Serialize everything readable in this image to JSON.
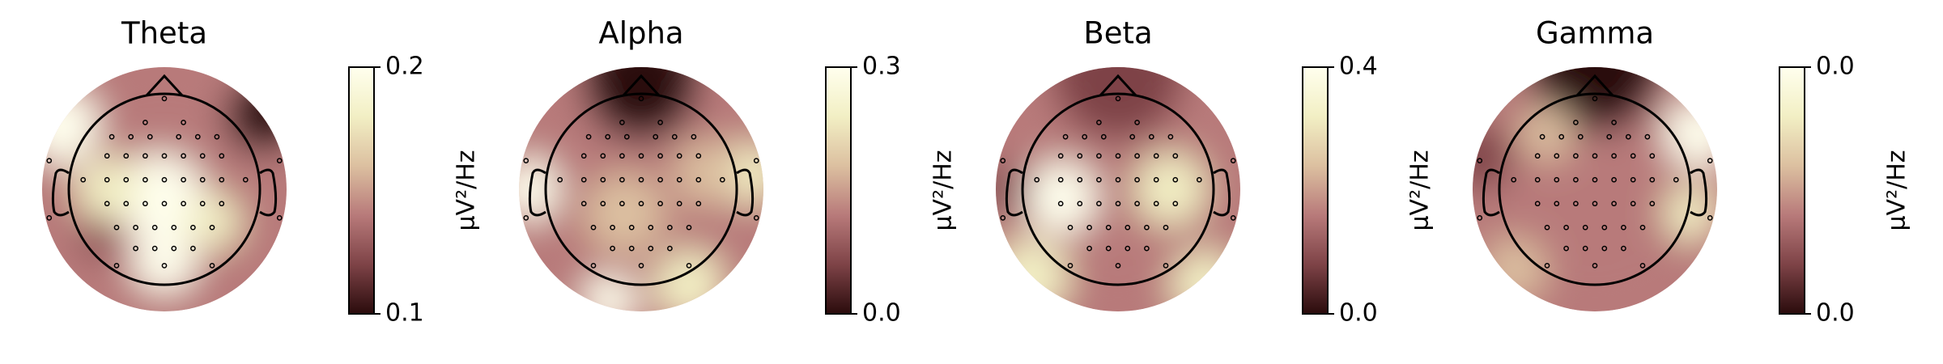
{
  "chart_data": [
    {
      "type": "topomap",
      "title": "Theta",
      "colorbar_label": "µV²/Hz",
      "ylim": [
        0.1,
        0.2
      ],
      "yticks": [
        0.1,
        0.2
      ],
      "colormap": [
        "#2a0b0c",
        "#7e4347",
        "#b87a7a",
        "#dcc0a0",
        "#f2efc4",
        "#ffffee"
      ]
    },
    {
      "type": "topomap",
      "title": "Alpha",
      "colorbar_label": "µV²/Hz",
      "ylim": [
        0,
        0.3
      ],
      "yticks": [
        {
          "value": 0,
          "label": "0.0"
        },
        0.3
      ],
      "colormap": [
        "#2a0b0c",
        "#7e4347",
        "#b87a7a",
        "#dcc0a0",
        "#f2efc4",
        "#ffffee"
      ]
    },
    {
      "type": "topomap",
      "title": "Beta",
      "colorbar_label": "µV²/Hz",
      "ylim": [
        0,
        0.4
      ],
      "yticks": [
        {
          "value": 0,
          "label": "0.0"
        },
        0.4
      ],
      "colormap": [
        "#2a0b0c",
        "#7e4347",
        "#b87a7a",
        "#dcc0a0",
        "#f2efc4",
        "#ffffee"
      ]
    },
    {
      "type": "topomap",
      "title": "Gamma",
      "colorbar_label": "µV²/Hz",
      "ylim": [
        0,
        0.04
      ],
      "yticks": [
        {
          "value": 0,
          "label": "0.0"
        },
        {
          "value": 0.04,
          "label": "0.0"
        }
      ],
      "colormap": [
        "#2a0b0c",
        "#7e4347",
        "#b87a7a",
        "#dcc0a0",
        "#f2efc4",
        "#ffffee"
      ]
    }
  ]
}
